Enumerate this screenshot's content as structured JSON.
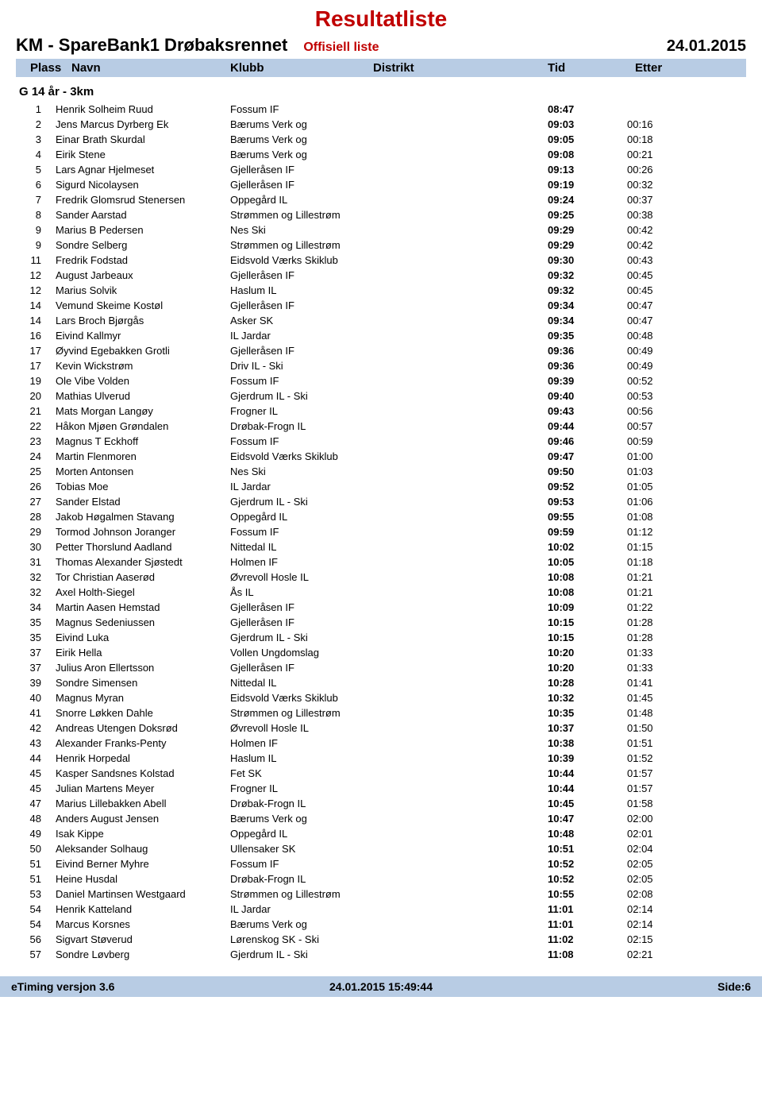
{
  "title": "Resultatliste",
  "event": "KM - SpareBank1 Drøbaksrennet",
  "list_type": "Offisiell liste",
  "date": "24.01.2015",
  "columns": {
    "plass": "Plass",
    "navn": "Navn",
    "klubb": "Klubb",
    "distrikt": "Distrikt",
    "tid": "Tid",
    "etter": "Etter"
  },
  "group": "G 14 år - 3km",
  "rows": [
    {
      "p": "1",
      "n": "Henrik Solheim Ruud",
      "k": "Fossum IF",
      "t": "08:47",
      "e": ""
    },
    {
      "p": "2",
      "n": "Jens Marcus Dyrberg Ek",
      "k": "Bærums Verk og",
      "t": "09:03",
      "e": "00:16"
    },
    {
      "p": "3",
      "n": "Einar Brath Skurdal",
      "k": "Bærums Verk og",
      "t": "09:05",
      "e": "00:18"
    },
    {
      "p": "4",
      "n": "Eirik Stene",
      "k": "Bærums Verk og",
      "t": "09:08",
      "e": "00:21"
    },
    {
      "p": "5",
      "n": "Lars Agnar Hjelmeset",
      "k": "Gjelleråsen IF",
      "t": "09:13",
      "e": "00:26"
    },
    {
      "p": "6",
      "n": "Sigurd Nicolaysen",
      "k": "Gjelleråsen IF",
      "t": "09:19",
      "e": "00:32"
    },
    {
      "p": "7",
      "n": "Fredrik Glomsrud Stenersen",
      "k": "Oppegård IL",
      "t": "09:24",
      "e": "00:37"
    },
    {
      "p": "8",
      "n": "Sander Aarstad",
      "k": "Strømmen og Lillestrøm",
      "t": "09:25",
      "e": "00:38"
    },
    {
      "p": "9",
      "n": "Marius B Pedersen",
      "k": "Nes Ski",
      "t": "09:29",
      "e": "00:42"
    },
    {
      "p": "9",
      "n": "Sondre Selberg",
      "k": "Strømmen og Lillestrøm",
      "t": "09:29",
      "e": "00:42"
    },
    {
      "p": "11",
      "n": "Fredrik Fodstad",
      "k": "Eidsvold Værks Skiklub",
      "t": "09:30",
      "e": "00:43"
    },
    {
      "p": "12",
      "n": "August Jarbeaux",
      "k": "Gjelleråsen IF",
      "t": "09:32",
      "e": "00:45"
    },
    {
      "p": "12",
      "n": "Marius Solvik",
      "k": "Haslum IL",
      "t": "09:32",
      "e": "00:45"
    },
    {
      "p": "14",
      "n": "Vemund Skeime Kostøl",
      "k": "Gjelleråsen IF",
      "t": "09:34",
      "e": "00:47"
    },
    {
      "p": "14",
      "n": "Lars Broch Bjørgås",
      "k": "Asker SK",
      "t": "09:34",
      "e": "00:47"
    },
    {
      "p": "16",
      "n": "Eivind Kallmyr",
      "k": "IL Jardar",
      "t": "09:35",
      "e": "00:48"
    },
    {
      "p": "17",
      "n": "Øyvind Egebakken Grotli",
      "k": "Gjelleråsen IF",
      "t": "09:36",
      "e": "00:49"
    },
    {
      "p": "17",
      "n": "Kevin Wickstrøm",
      "k": "Driv IL - Ski",
      "t": "09:36",
      "e": "00:49"
    },
    {
      "p": "19",
      "n": "Ole Vibe Volden",
      "k": "Fossum IF",
      "t": "09:39",
      "e": "00:52"
    },
    {
      "p": "20",
      "n": "Mathias Ulverud",
      "k": "Gjerdrum IL - Ski",
      "t": "09:40",
      "e": "00:53"
    },
    {
      "p": "21",
      "n": "Mats Morgan Langøy",
      "k": "Frogner IL",
      "t": "09:43",
      "e": "00:56"
    },
    {
      "p": "22",
      "n": "Håkon Mjøen Grøndalen",
      "k": "Drøbak-Frogn IL",
      "t": "09:44",
      "e": "00:57"
    },
    {
      "p": "23",
      "n": "Magnus T Eckhoff",
      "k": "Fossum IF",
      "t": "09:46",
      "e": "00:59"
    },
    {
      "p": "24",
      "n": "Martin Flenmoren",
      "k": "Eidsvold Værks Skiklub",
      "t": "09:47",
      "e": "01:00"
    },
    {
      "p": "25",
      "n": "Morten Antonsen",
      "k": "Nes Ski",
      "t": "09:50",
      "e": "01:03"
    },
    {
      "p": "26",
      "n": "Tobias Moe",
      "k": "IL Jardar",
      "t": "09:52",
      "e": "01:05"
    },
    {
      "p": "27",
      "n": "Sander Elstad",
      "k": "Gjerdrum IL - Ski",
      "t": "09:53",
      "e": "01:06"
    },
    {
      "p": "28",
      "n": "Jakob Høgalmen Stavang",
      "k": "Oppegård IL",
      "t": "09:55",
      "e": "01:08"
    },
    {
      "p": "29",
      "n": "Tormod Johnson Joranger",
      "k": "Fossum IF",
      "t": "09:59",
      "e": "01:12"
    },
    {
      "p": "30",
      "n": "Petter Thorslund Aadland",
      "k": "Nittedal IL",
      "t": "10:02",
      "e": "01:15"
    },
    {
      "p": "31",
      "n": "Thomas Alexander Sjøstedt",
      "k": "Holmen IF",
      "t": "10:05",
      "e": "01:18"
    },
    {
      "p": "32",
      "n": "Tor Christian Aaserød",
      "k": "Øvrevoll Hosle IL",
      "t": "10:08",
      "e": "01:21"
    },
    {
      "p": "32",
      "n": "Axel Holth-Siegel",
      "k": "Ås IL",
      "t": "10:08",
      "e": "01:21"
    },
    {
      "p": "34",
      "n": "Martin Aasen Hemstad",
      "k": "Gjelleråsen IF",
      "t": "10:09",
      "e": "01:22"
    },
    {
      "p": "35",
      "n": "Magnus Sedeniussen",
      "k": "Gjelleråsen IF",
      "t": "10:15",
      "e": "01:28"
    },
    {
      "p": "35",
      "n": "Eivind Luka",
      "k": "Gjerdrum IL - Ski",
      "t": "10:15",
      "e": "01:28"
    },
    {
      "p": "37",
      "n": "Eirik Hella",
      "k": "Vollen Ungdomslag",
      "t": "10:20",
      "e": "01:33"
    },
    {
      "p": "37",
      "n": "Julius Aron Ellertsson",
      "k": "Gjelleråsen IF",
      "t": "10:20",
      "e": "01:33"
    },
    {
      "p": "39",
      "n": "Sondre Simensen",
      "k": "Nittedal IL",
      "t": "10:28",
      "e": "01:41"
    },
    {
      "p": "40",
      "n": "Magnus Myran",
      "k": "Eidsvold Værks Skiklub",
      "t": "10:32",
      "e": "01:45"
    },
    {
      "p": "41",
      "n": "Snorre Løkken Dahle",
      "k": "Strømmen og Lillestrøm",
      "t": "10:35",
      "e": "01:48"
    },
    {
      "p": "42",
      "n": "Andreas Utengen Doksrød",
      "k": "Øvrevoll Hosle IL",
      "t": "10:37",
      "e": "01:50"
    },
    {
      "p": "43",
      "n": "Alexander Franks-Penty",
      "k": "Holmen IF",
      "t": "10:38",
      "e": "01:51"
    },
    {
      "p": "44",
      "n": "Henrik Horpedal",
      "k": "Haslum IL",
      "t": "10:39",
      "e": "01:52"
    },
    {
      "p": "45",
      "n": "Kasper Sandsnes Kolstad",
      "k": "Fet SK",
      "t": "10:44",
      "e": "01:57"
    },
    {
      "p": "45",
      "n": "Julian Martens Meyer",
      "k": "Frogner IL",
      "t": "10:44",
      "e": "01:57"
    },
    {
      "p": "47",
      "n": "Marius Lillebakken Abell",
      "k": "Drøbak-Frogn IL",
      "t": "10:45",
      "e": "01:58"
    },
    {
      "p": "48",
      "n": "Anders August Jensen",
      "k": "Bærums Verk og",
      "t": "10:47",
      "e": "02:00"
    },
    {
      "p": "49",
      "n": "Isak Kippe",
      "k": "Oppegård IL",
      "t": "10:48",
      "e": "02:01"
    },
    {
      "p": "50",
      "n": "Aleksander Solhaug",
      "k": "Ullensaker SK",
      "t": "10:51",
      "e": "02:04"
    },
    {
      "p": "51",
      "n": "Eivind Berner Myhre",
      "k": "Fossum IF",
      "t": "10:52",
      "e": "02:05"
    },
    {
      "p": "51",
      "n": "Heine Husdal",
      "k": "Drøbak-Frogn IL",
      "t": "10:52",
      "e": "02:05"
    },
    {
      "p": "53",
      "n": "Daniel Martinsen Westgaard",
      "k": "Strømmen og Lillestrøm",
      "t": "10:55",
      "e": "02:08"
    },
    {
      "p": "54",
      "n": "Henrik Katteland",
      "k": "IL Jardar",
      "t": "11:01",
      "e": "02:14"
    },
    {
      "p": "54",
      "n": "Marcus Korsnes",
      "k": "Bærums Verk og",
      "t": "11:01",
      "e": "02:14"
    },
    {
      "p": "56",
      "n": "Sigvart Støverud",
      "k": "Lørenskog SK - Ski",
      "t": "11:02",
      "e": "02:15"
    },
    {
      "p": "57",
      "n": "Sondre Løvberg",
      "k": "Gjerdrum IL - Ski",
      "t": "11:08",
      "e": "02:21"
    }
  ],
  "footer": {
    "left": "eTiming versjon 3.6",
    "mid": "24.01.2015 15:49:44",
    "right": "Side:6"
  },
  "colors": {
    "title": "#c00000",
    "header_bg": "#b8cce4",
    "text": "#000000",
    "bg": "#ffffff"
  }
}
